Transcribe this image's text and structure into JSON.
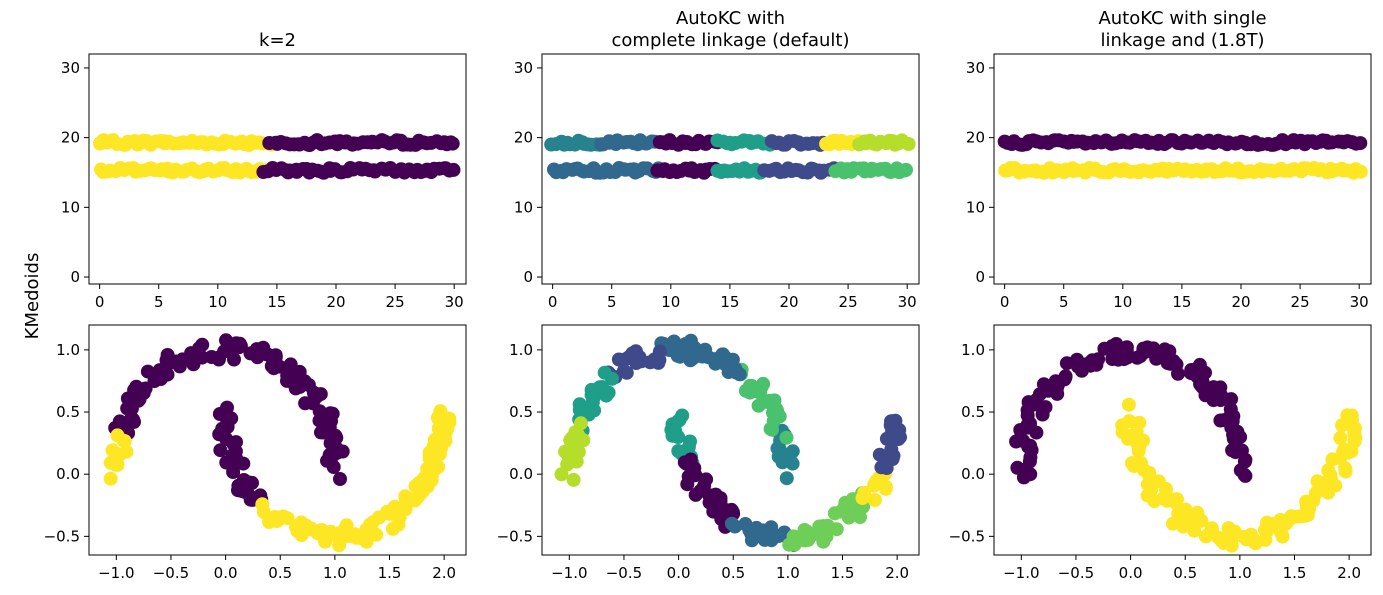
{
  "figure": {
    "ylabel": "KMedoids"
  },
  "colors": {
    "viridis": [
      "#440154",
      "#482878",
      "#3e4a89",
      "#31688e",
      "#26828e",
      "#1f9e89",
      "#35b779",
      "#6ece58",
      "#b5de2b",
      "#fde725"
    ]
  },
  "chart_data": [
    {
      "type": "scatter",
      "title": [
        "k=2"
      ],
      "dataset": "parallel-lines",
      "xlim": [
        -0.9,
        31.0
      ],
      "ylim": [
        -1.0,
        32.0
      ],
      "xticks": [
        0,
        5,
        10,
        15,
        20,
        25,
        30
      ],
      "yticks": [
        0,
        10,
        20,
        30
      ],
      "series": [
        {
          "color": "#fde725",
          "segments": [
            {
              "x": [
                0,
                14.5
              ],
              "y": 19.3
            },
            {
              "x": [
                0,
                14.0
              ],
              "y": 15.3
            }
          ]
        },
        {
          "color": "#440154",
          "segments": [
            {
              "x": [
                14.5,
                30
              ],
              "y": 19.3
            },
            {
              "x": [
                14.0,
                30
              ],
              "y": 15.3
            }
          ]
        }
      ]
    },
    {
      "type": "scatter",
      "title": [
        "AutoKC with",
        "complete linkage (default)"
      ],
      "dataset": "parallel-lines",
      "xlim": [
        -0.9,
        31.0
      ],
      "ylim": [
        -1.0,
        32.0
      ],
      "xticks": [
        0,
        5,
        10,
        15,
        20,
        25,
        30
      ],
      "yticks": [
        0,
        10,
        20,
        30
      ],
      "series": [
        {
          "color": "#26828e",
          "segments": [
            {
              "x": [
                0,
                4
              ],
              "y": 19.3
            }
          ]
        },
        {
          "color": "#31688e",
          "segments": [
            {
              "x": [
                4,
                9
              ],
              "y": 19.3
            },
            {
              "x": [
                0,
                9
              ],
              "y": 15.3
            }
          ]
        },
        {
          "color": "#440154",
          "segments": [
            {
              "x": [
                9,
                14
              ],
              "y": 19.3
            },
            {
              "x": [
                9,
                14
              ],
              "y": 15.3
            }
          ]
        },
        {
          "color": "#1f9e89",
          "segments": [
            {
              "x": [
                14,
                18.5
              ],
              "y": 19.3
            },
            {
              "x": [
                14,
                18
              ],
              "y": 15.3
            }
          ]
        },
        {
          "color": "#3e4a89",
          "segments": [
            {
              "x": [
                18.5,
                23
              ],
              "y": 19.3
            },
            {
              "x": [
                18,
                24
              ],
              "y": 15.3
            }
          ]
        },
        {
          "color": "#fde725",
          "segments": [
            {
              "x": [
                23,
                26
              ],
              "y": 19.3
            }
          ]
        },
        {
          "color": "#b5de2b",
          "segments": [
            {
              "x": [
                26,
                30
              ],
              "y": 19.3
            }
          ]
        },
        {
          "color": "#4ac16d",
          "segments": [
            {
              "x": [
                24,
                30
              ],
              "y": 15.3
            }
          ]
        }
      ]
    },
    {
      "type": "scatter",
      "title": [
        "AutoKC with single",
        "linkage and (1.8T)"
      ],
      "dataset": "parallel-lines",
      "xlim": [
        -0.9,
        31.0
      ],
      "ylim": [
        -1.0,
        32.0
      ],
      "xticks": [
        0,
        5,
        10,
        15,
        20,
        25,
        30
      ],
      "yticks": [
        0,
        10,
        20,
        30
      ],
      "series": [
        {
          "color": "#440154",
          "segments": [
            {
              "x": [
                0,
                30
              ],
              "y": 19.3
            }
          ]
        },
        {
          "color": "#fde725",
          "segments": [
            {
              "x": [
                0,
                30
              ],
              "y": 15.3
            }
          ]
        }
      ]
    },
    {
      "type": "scatter",
      "dataset": "two-moons",
      "xlim": [
        -1.25,
        2.2
      ],
      "ylim": [
        -0.65,
        1.2
      ],
      "xticks": [
        -1.0,
        -0.5,
        0.0,
        0.5,
        1.0,
        1.5,
        2.0
      ],
      "yticks": [
        -0.5,
        0.0,
        0.5,
        1.0
      ],
      "series": [
        {
          "color": "#440154",
          "moon": "upper",
          "t": [
            0.0,
            0.9
          ]
        },
        {
          "color": "#fde725",
          "moon": "upper",
          "t": [
            0.9,
            1.0
          ]
        },
        {
          "color": "#440154",
          "moon": "lower",
          "t": [
            0.0,
            0.27
          ]
        },
        {
          "color": "#fde725",
          "moon": "lower",
          "t": [
            0.27,
            1.0
          ]
        }
      ]
    },
    {
      "type": "scatter",
      "dataset": "two-moons",
      "xlim": [
        -1.25,
        2.2
      ],
      "ylim": [
        -0.65,
        1.2
      ],
      "xticks": [
        -1.0,
        -0.5,
        0.0,
        0.5,
        1.0,
        1.5,
        2.0
      ],
      "yticks": [
        -0.5,
        0.0,
        0.5,
        1.0
      ],
      "series": [
        {
          "color": "#26828e",
          "moon": "upper",
          "t": [
            0.0,
            0.12
          ]
        },
        {
          "color": "#4ac16d",
          "moon": "upper",
          "t": [
            0.12,
            0.3
          ]
        },
        {
          "color": "#31688e",
          "moon": "upper",
          "t": [
            0.3,
            0.55
          ]
        },
        {
          "color": "#3e4a89",
          "moon": "upper",
          "t": [
            0.55,
            0.72
          ]
        },
        {
          "color": "#1f9e89",
          "moon": "upper",
          "t": [
            0.72,
            0.87
          ]
        },
        {
          "color": "#b5de2b",
          "moon": "upper",
          "t": [
            0.87,
            1.0
          ]
        },
        {
          "color": "#1f9e89",
          "moon": "lower",
          "t": [
            0.0,
            0.12
          ]
        },
        {
          "color": "#440154",
          "moon": "lower",
          "t": [
            0.12,
            0.35
          ]
        },
        {
          "color": "#31688e",
          "moon": "lower",
          "t": [
            0.35,
            0.5
          ]
        },
        {
          "color": "#6ece58",
          "moon": "lower",
          "t": [
            0.5,
            0.75
          ]
        },
        {
          "color": "#fde725",
          "moon": "lower",
          "t": [
            0.75,
            0.84
          ]
        },
        {
          "color": "#3e4a89",
          "moon": "lower",
          "t": [
            0.84,
            1.0
          ]
        }
      ]
    },
    {
      "type": "scatter",
      "dataset": "two-moons",
      "xlim": [
        -1.25,
        2.2
      ],
      "ylim": [
        -0.65,
        1.2
      ],
      "xticks": [
        -1.0,
        -0.5,
        0.0,
        0.5,
        1.0,
        1.5,
        2.0
      ],
      "yticks": [
        -0.5,
        0.0,
        0.5,
        1.0
      ],
      "series": [
        {
          "color": "#440154",
          "moon": "upper",
          "t": [
            0.0,
            1.0
          ]
        },
        {
          "color": "#fde725",
          "moon": "lower",
          "t": [
            0.0,
            1.0
          ]
        }
      ]
    }
  ]
}
